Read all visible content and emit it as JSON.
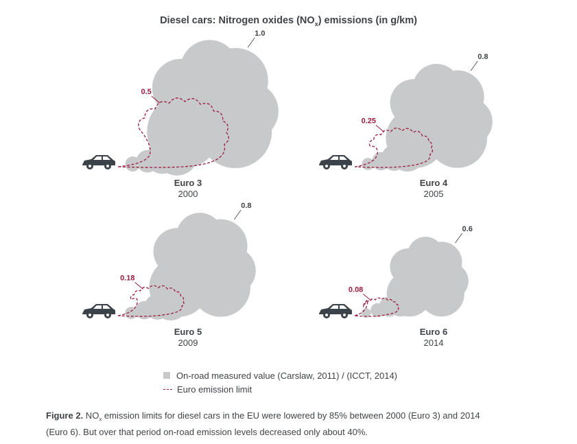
{
  "title": {
    "prefix": "Diesel cars: Nitrogen oxides (NO",
    "subscript": "x",
    "suffix": ") emissions (in g/km)"
  },
  "colors": {
    "measured": "#c8c9cb",
    "limit": "#9b1c3d",
    "car": "#3b4249",
    "text": "#3f4348"
  },
  "chart_data": {
    "type": "bar",
    "title": "Diesel cars: Nitrogen oxides (NOx) emissions (in g/km)",
    "unit": "g/km",
    "categories": [
      "Euro 3",
      "Euro 4",
      "Euro 5",
      "Euro 6"
    ],
    "years": [
      "2000",
      "2005",
      "2009",
      "2014"
    ],
    "series": [
      {
        "name": "On-road measured value (Carslaw, 2011) / (ICCT, 2014)",
        "values": [
          1.0,
          0.8,
          0.8,
          0.6
        ],
        "labels": [
          "1.0",
          "0.8",
          "0.8",
          "0.6"
        ]
      },
      {
        "name": "Euro emission limit",
        "values": [
          0.5,
          0.25,
          0.18,
          0.08
        ],
        "labels": [
          "0.5",
          "0.25",
          "0.18",
          "0.08"
        ]
      }
    ]
  },
  "legend": {
    "measured_label": "On-road measured value (Carslaw, 2011) / (ICCT, 2014)",
    "limit_label": "Euro emission limit"
  },
  "caption": {
    "bold": "Figure 2.",
    "part1": " NO",
    "subscript": "x",
    "part2": " emission limits for diesel cars in the EU were lowered by 85% between 2000 (Euro 3) and 2014",
    "line2": "(Euro 6). But over that period on-road emission levels decreased only about 40%."
  }
}
